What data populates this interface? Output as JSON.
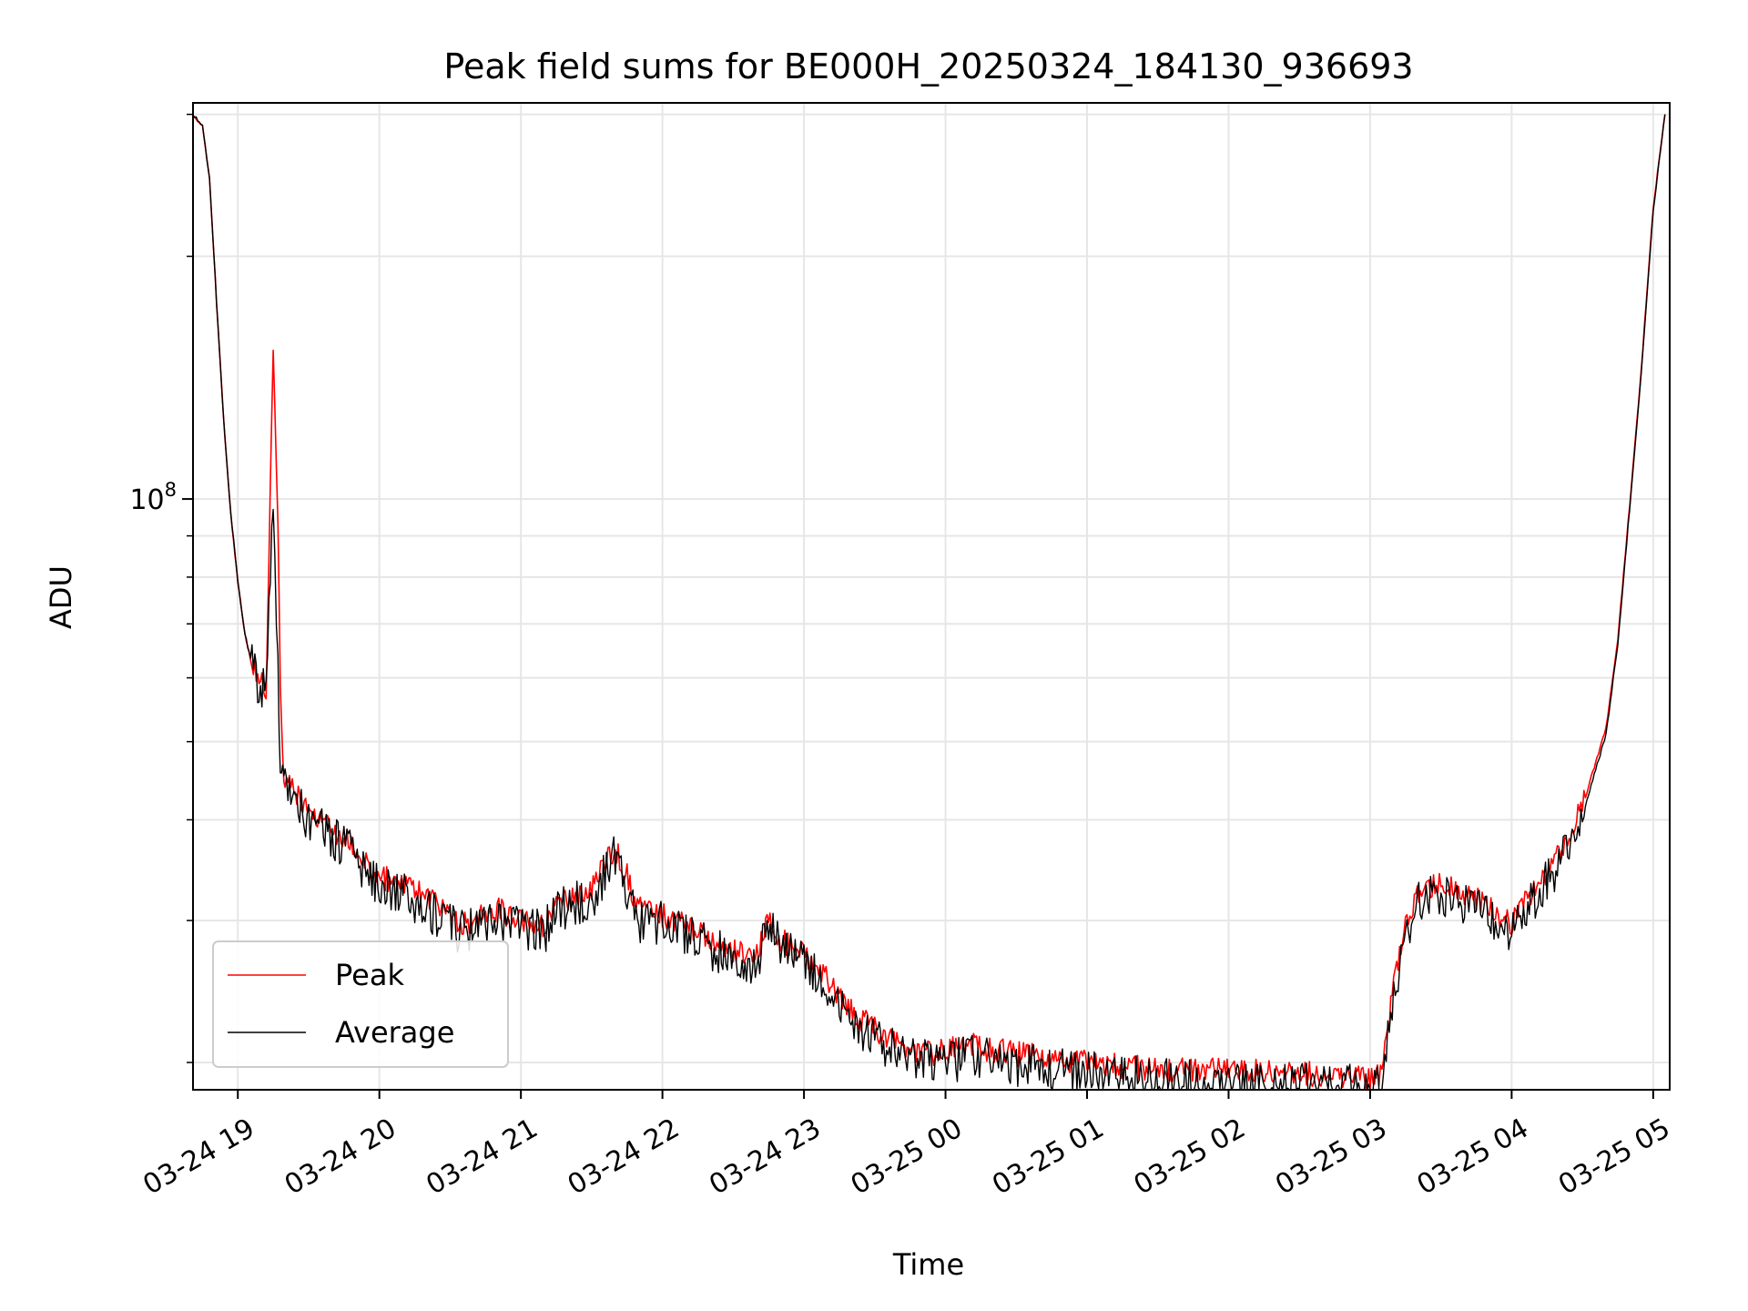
{
  "chart_data": {
    "type": "line",
    "title": "Peak field sums for BE000H_20250324_184130_936693",
    "xlabel": "Time",
    "ylabel": "ADU",
    "y_scale": "log",
    "xlim": [
      "2025-03-24 18:41",
      "2025-03-25 05:07"
    ],
    "ylim": [
      18500000,
      310000000
    ],
    "x_ticks": [
      "03-24 19",
      "03-24 20",
      "03-24 21",
      "03-24 22",
      "03-24 23",
      "03-25 00",
      "03-25 01",
      "03-25 02",
      "03-25 03",
      "03-25 04",
      "03-25 05"
    ],
    "y_tick_label": {
      "base": "10",
      "exponent": "8",
      "value": 100000000
    },
    "grid": true,
    "legend_position": "lower left",
    "series": [
      {
        "name": "Peak",
        "color": "#ff0000",
        "x": [
          "2025-03-24 18:41",
          "2025-03-24 18:45",
          "2025-03-24 18:48",
          "2025-03-24 18:51",
          "2025-03-24 18:54",
          "2025-03-24 18:57",
          "2025-03-24 19:00",
          "2025-03-24 19:03",
          "2025-03-24 19:06",
          "2025-03-24 19:09",
          "2025-03-24 19:12",
          "2025-03-24 19:15",
          "2025-03-24 19:17",
          "2025-03-24 19:18",
          "2025-03-24 19:19",
          "2025-03-24 19:20",
          "2025-03-24 19:25",
          "2025-03-24 19:30",
          "2025-03-24 19:40",
          "2025-03-24 19:50",
          "2025-03-24 20:00",
          "2025-03-24 20:10",
          "2025-03-24 20:20",
          "2025-03-24 20:35",
          "2025-03-24 20:50",
          "2025-03-24 21:00",
          "2025-03-24 21:10",
          "2025-03-24 21:15",
          "2025-03-24 21:30",
          "2025-03-24 21:40",
          "2025-03-24 21:45",
          "2025-03-24 21:50",
          "2025-03-24 21:55",
          "2025-03-24 22:00",
          "2025-03-24 22:15",
          "2025-03-24 22:30",
          "2025-03-24 22:40",
          "2025-03-24 22:45",
          "2025-03-24 22:50",
          "2025-03-24 23:05",
          "2025-03-24 23:15",
          "2025-03-24 23:25",
          "2025-03-24 23:40",
          "2025-03-24 23:55",
          "2025-03-25 00:10",
          "2025-03-25 00:30",
          "2025-03-25 01:00",
          "2025-03-25 01:30",
          "2025-03-25 02:00",
          "2025-03-25 02:30",
          "2025-03-25 03:00",
          "2025-03-25 03:05",
          "2025-03-25 03:10",
          "2025-03-25 03:15",
          "2025-03-25 03:20",
          "2025-03-25 03:30",
          "2025-03-25 03:45",
          "2025-03-25 04:00",
          "2025-03-25 04:10",
          "2025-03-25 04:20",
          "2025-03-25 04:30",
          "2025-03-25 04:40",
          "2025-03-25 04:45",
          "2025-03-25 04:50",
          "2025-03-25 04:55",
          "2025-03-25 05:00",
          "2025-03-25 05:05"
        ],
        "y": [
          300000000,
          290000000,
          250000000,
          175000000,
          125000000,
          96000000,
          79000000,
          68000000,
          62000000,
          60000000,
          58000000,
          155000000,
          95000000,
          60000000,
          47000000,
          45000000,
          43000000,
          41000000,
          39000000,
          37000000,
          34000000,
          33500000,
          32000000,
          29500000,
          31000000,
          30000000,
          29500000,
          31500000,
          33000000,
          37000000,
          34000000,
          31000000,
          30500000,
          30500000,
          29000000,
          27500000,
          27000000,
          30500000,
          28500000,
          26500000,
          24000000,
          22500000,
          21000000,
          20500000,
          21000000,
          20500000,
          20000000,
          19600000,
          19500000,
          19400000,
          19200000,
          19300000,
          25000000,
          30000000,
          32500000,
          33500000,
          32000000,
          29800000,
          33000000,
          36000000,
          41500000,
          52000000,
          67000000,
          98000000,
          145000000,
          230000000,
          300000000
        ]
      },
      {
        "name": "Average",
        "color": "#000000",
        "x": [
          "2025-03-24 18:41",
          "2025-03-24 18:45",
          "2025-03-24 18:48",
          "2025-03-24 18:51",
          "2025-03-24 18:54",
          "2025-03-24 18:57",
          "2025-03-24 19:00",
          "2025-03-24 19:03",
          "2025-03-24 19:06",
          "2025-03-24 19:09",
          "2025-03-24 19:12",
          "2025-03-24 19:15",
          "2025-03-24 19:17",
          "2025-03-24 19:18",
          "2025-03-24 19:19",
          "2025-03-24 19:20",
          "2025-03-24 19:25",
          "2025-03-24 19:30",
          "2025-03-24 19:40",
          "2025-03-24 19:50",
          "2025-03-24 20:00",
          "2025-03-24 20:10",
          "2025-03-24 20:20",
          "2025-03-24 20:35",
          "2025-03-24 20:50",
          "2025-03-24 21:00",
          "2025-03-24 21:10",
          "2025-03-24 21:15",
          "2025-03-24 21:30",
          "2025-03-24 21:40",
          "2025-03-24 21:45",
          "2025-03-24 21:50",
          "2025-03-24 21:55",
          "2025-03-24 22:00",
          "2025-03-24 22:15",
          "2025-03-24 22:30",
          "2025-03-24 22:40",
          "2025-03-24 22:45",
          "2025-03-24 22:50",
          "2025-03-24 23:05",
          "2025-03-24 23:15",
          "2025-03-24 23:25",
          "2025-03-24 23:40",
          "2025-03-24 23:55",
          "2025-03-25 00:10",
          "2025-03-25 00:30",
          "2025-03-25 01:00",
          "2025-03-25 01:30",
          "2025-03-25 02:00",
          "2025-03-25 02:30",
          "2025-03-25 03:00",
          "2025-03-25 03:05",
          "2025-03-25 03:10",
          "2025-03-25 03:15",
          "2025-03-25 03:20",
          "2025-03-25 03:30",
          "2025-03-25 03:45",
          "2025-03-25 04:00",
          "2025-03-25 04:10",
          "2025-03-25 04:20",
          "2025-03-25 04:30",
          "2025-03-25 04:40",
          "2025-03-25 04:45",
          "2025-03-25 04:50",
          "2025-03-25 04:55",
          "2025-03-25 05:00",
          "2025-03-25 05:05"
        ],
        "y": [
          300000000,
          290000000,
          250000000,
          175000000,
          125000000,
          96000000,
          79000000,
          68000000,
          62000000,
          59000000,
          57000000,
          98000000,
          62000000,
          46000000,
          44500000,
          44000000,
          42000000,
          40000000,
          38000000,
          36000000,
          33000000,
          32500000,
          31000000,
          29000000,
          30000000,
          29500000,
          29000000,
          30800000,
          32000000,
          36000000,
          33000000,
          30000000,
          30000000,
          29800000,
          28300000,
          26800000,
          26500000,
          29800000,
          27800000,
          25800000,
          23300000,
          21800000,
          20500000,
          19900000,
          20300000,
          19900000,
          19400000,
          19000000,
          18900000,
          18800000,
          18600000,
          18700000,
          24000000,
          29000000,
          31500000,
          32500000,
          31000000,
          29000000,
          32000000,
          35000000,
          40500000,
          51000000,
          66000000,
          97000000,
          144000000,
          228000000,
          300000000
        ]
      }
    ]
  }
}
